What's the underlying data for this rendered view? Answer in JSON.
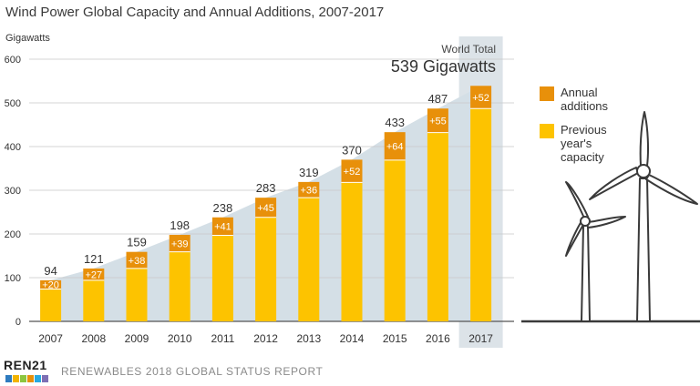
{
  "header": {
    "title": "Wind Power Global Capacity and Annual Additions, 2007-2017",
    "unit_label": "Gigawatts"
  },
  "highlight": {
    "label": "World Total",
    "value": "539 Gigawatts"
  },
  "legend": {
    "items": [
      {
        "label_lines": [
          "Annual",
          "additions"
        ],
        "color": "#e8900a"
      },
      {
        "label_lines": [
          "Previous",
          "year's",
          "capacity"
        ],
        "color": "#fdc300"
      }
    ]
  },
  "footer": {
    "logo_text": "REN21",
    "logo_colors": [
      "#2e7bbf",
      "#f2b400",
      "#8cc63f",
      "#e8900a",
      "#27a9e1",
      "#7d6fb4"
    ],
    "report_title": "RENEWABLES 2018 GLOBAL STATUS REPORT"
  },
  "colors": {
    "additions": "#e8900a",
    "previous": "#fdc300",
    "area": "#d4dfe6",
    "highlight_band": "#dce3e8",
    "grid": "#c9c9c9"
  },
  "chart_data": {
    "type": "bar",
    "stacked": true,
    "title": "Wind Power Global Capacity and Annual Additions, 2007-2017",
    "ylabel": "Gigawatts",
    "xlabel": "",
    "ylim": [
      0,
      600
    ],
    "yticks": [
      0,
      100,
      200,
      300,
      400,
      500,
      600
    ],
    "grid": true,
    "legend_position": "right",
    "categories": [
      "2007",
      "2008",
      "2009",
      "2010",
      "2011",
      "2012",
      "2013",
      "2014",
      "2015",
      "2016",
      "2017"
    ],
    "totals": [
      94,
      121,
      159,
      198,
      238,
      283,
      319,
      370,
      433,
      487,
      539
    ],
    "series": [
      {
        "name": "Previous year's capacity",
        "values": [
          74,
          94,
          121,
          159,
          197,
          238,
          283,
          318,
          369,
          432,
          487
        ]
      },
      {
        "name": "Annual additions",
        "values": [
          20,
          27,
          38,
          39,
          41,
          45,
          36,
          52,
          64,
          55,
          52
        ],
        "labels": [
          "+20",
          "+27",
          "+38",
          "+39",
          "+41",
          "+45",
          "+36",
          "+52",
          "+64",
          "+55",
          "+52"
        ]
      }
    ]
  }
}
